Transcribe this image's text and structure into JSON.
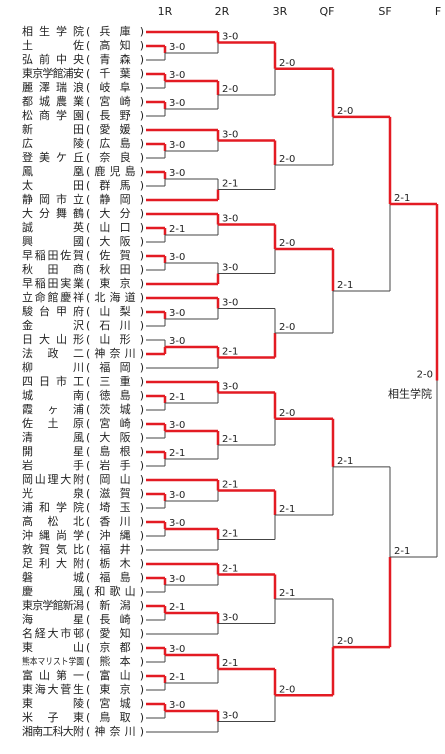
{
  "rounds": [
    "1R",
    "2R",
    "3R",
    "QF",
    "SF",
    "F"
  ],
  "champion": "相生学院",
  "bracket": {
    "score": "2-0",
    "winner": "top",
    "top": {
      "score": "2-1",
      "winner": "top",
      "top": {
        "score": "2-0",
        "winner": "top",
        "top": {
          "score": "2-0",
          "winner": "top",
          "top": {
            "score": "3-0",
            "winner": "top",
            "top": {
              "name": "相生学院",
              "pref": "(兵庫)"
            },
            "bottom": {
              "score": "3-0",
              "winner": "top",
              "top": {
                "name": "土佐",
                "pref": "(高知)"
              },
              "bottom": {
                "name": "弘前中央",
                "pref": "(青森)"
              }
            }
          },
          "bottom": {
            "score": "2-0",
            "winner": "top",
            "top": {
              "score": "3-0",
              "winner": "top",
              "top": {
                "name": "東京学館浦安",
                "pref": "(千葉)"
              },
              "bottom": {
                "name": "麗澤瑞浪",
                "pref": "(岐阜)"
              }
            },
            "bottom": {
              "score": "3-0",
              "winner": "top",
              "top": {
                "name": "都城農業",
                "pref": "(宮崎)"
              },
              "bottom": {
                "name": "松商学園",
                "pref": "(長野)"
              }
            }
          }
        },
        "bottom": {
          "score": "2-0",
          "winner": "top",
          "top": {
            "score": "3-0",
            "winner": "top",
            "top": {
              "name": "新田",
              "pref": "(愛媛)"
            },
            "bottom": {
              "score": "3-0",
              "winner": "top",
              "top": {
                "name": "広陵",
                "pref": "(広島)"
              },
              "bottom": {
                "name": "登美ケ丘",
                "pref": "(奈良)"
              }
            }
          },
          "bottom": {
            "score": "2-1",
            "winner": "bottom",
            "top": {
              "score": "3-0",
              "winner": "top",
              "top": {
                "name": "鳳凰",
                "pref": "(鹿児島)"
              },
              "bottom": {
                "name": "太田",
                "pref": "(群馬)"
              }
            },
            "bottom": {
              "name": "静岡市立",
              "pref": "(静岡)"
            }
          }
        }
      },
      "bottom": {
        "score": "2-1",
        "winner": "top",
        "top": {
          "score": "2-0",
          "winner": "top",
          "top": {
            "score": "3-0",
            "winner": "top",
            "top": {
              "name": "大分舞鶴",
              "pref": "(大分)"
            },
            "bottom": {
              "score": "2-1",
              "winner": "top",
              "top": {
                "name": "誠英",
                "pref": "(山口)"
              },
              "bottom": {
                "name": "興國",
                "pref": "(大阪)"
              }
            }
          },
          "bottom": {
            "score": "3-0",
            "winner": "bottom",
            "top": {
              "score": "3-0",
              "winner": "top",
              "top": {
                "name": "早稲田佐賀",
                "pref": "(佐賀)"
              },
              "bottom": {
                "name": "秋田商",
                "pref": "(秋田)"
              }
            },
            "bottom": {
              "name": "早稲田実業",
              "pref": "(東京)"
            }
          }
        },
        "bottom": {
          "score": "2-0",
          "winner": "bottom",
          "top": {
            "score": "3-0",
            "winner": "top",
            "top": {
              "name": "立命館慶祥",
              "pref": "(北海道)"
            },
            "bottom": {
              "score": "3-0",
              "winner": "top",
              "top": {
                "name": "駿台甲府",
                "pref": "(山梨)"
              },
              "bottom": {
                "name": "金沢",
                "pref": "(石川)"
              }
            }
          },
          "bottom": {
            "score": "2-1",
            "winner": "top",
            "top": {
              "score": "3-0",
              "winner": "bottom",
              "top": {
                "name": "日大山形",
                "pref": "(山形)"
              },
              "bottom": {
                "name": "法政二",
                "pref": "(神奈川)"
              }
            },
            "bottom": {
              "name": "柳川",
              "pref": "(福岡)"
            }
          }
        }
      }
    },
    "bottom": {
      "score": "2-1",
      "winner": "bottom",
      "top": {
        "score": "2-1",
        "winner": "top",
        "top": {
          "score": "2-0",
          "winner": "top",
          "top": {
            "score": "3-0",
            "winner": "top",
            "top": {
              "name": "四日市工",
              "pref": "(三重)"
            },
            "bottom": {
              "score": "2-1",
              "winner": "top",
              "top": {
                "name": "城南",
                "pref": "(徳島)"
              },
              "bottom": {
                "name": "霞ヶ浦",
                "pref": "(茨城)"
              }
            }
          },
          "bottom": {
            "score": "2-1",
            "winner": "top",
            "top": {
              "score": "3-0",
              "winner": "top",
              "top": {
                "name": "佐土原",
                "pref": "(宮崎)"
              },
              "bottom": {
                "name": "清風",
                "pref": "(大阪)"
              }
            },
            "bottom": {
              "score": "2-1",
              "winner": "top",
              "top": {
                "name": "開星",
                "pref": "(島根)"
              },
              "bottom": {
                "name": "岩手",
                "pref": "(岩手)"
              }
            }
          }
        },
        "bottom": {
          "score": "2-1",
          "winner": "top",
          "top": {
            "score": "2-1",
            "winner": "top",
            "top": {
              "name": "岡山理大附",
              "pref": "(岡山)"
            },
            "bottom": {
              "score": "3-0",
              "winner": "top",
              "top": {
                "name": "光泉",
                "pref": "(滋賀)"
              },
              "bottom": {
                "name": "浦和学院",
                "pref": "(埼玉)"
              }
            }
          },
          "bottom": {
            "score": "2-1",
            "winner": "top",
            "top": {
              "score": "3-0",
              "winner": "top",
              "top": {
                "name": "高松北",
                "pref": "(香川)"
              },
              "bottom": {
                "name": "沖縄尚学",
                "pref": "(沖縄)"
              }
            },
            "bottom": {
              "name": "敦賀気比",
              "pref": "(福井)"
            }
          }
        }
      },
      "bottom": {
        "score": "2-0",
        "winner": "bottom",
        "top": {
          "score": "2-1",
          "winner": "top",
          "top": {
            "score": "2-1",
            "winner": "top",
            "top": {
              "name": "足利大附",
              "pref": "(栃木)"
            },
            "bottom": {
              "score": "3-0",
              "winner": "top",
              "top": {
                "name": "磐城",
                "pref": "(福島)"
              },
              "bottom": {
                "name": "慶風",
                "pref": "(和歌山)"
              }
            }
          },
          "bottom": {
            "score": "3-0",
            "winner": "top",
            "top": {
              "score": "2-1",
              "winner": "top",
              "top": {
                "name": "東京学館新潟",
                "pref": "(新潟)"
              },
              "bottom": {
                "name": "海星",
                "pref": "(長崎)"
              }
            },
            "bottom": {
              "name": "名経大市邨",
              "pref": "(愛知)"
            }
          }
        },
        "bottom": {
          "score": "2-0",
          "winner": "top",
          "top": {
            "score": "2-1",
            "winner": "top",
            "top": {
              "score": "3-0",
              "winner": "top",
              "top": {
                "name": "東山",
                "pref": "(京都)"
              },
              "bottom": {
                "name": "熊本マリスト学園",
                "pref": "(熊本)"
              }
            },
            "bottom": {
              "score": "2-1",
              "winner": "top",
              "top": {
                "name": "富山第一",
                "pref": "(富山)"
              },
              "bottom": {
                "name": "東海大菅生",
                "pref": "(東京)"
              }
            }
          },
          "bottom": {
            "score": "3-0",
            "winner": "top",
            "top": {
              "score": "3-0",
              "winner": "top",
              "top": {
                "name": "東陵",
                "pref": "(宮城)"
              },
              "bottom": {
                "name": "米子東",
                "pref": "(鳥取)"
              }
            },
            "bottom": {
              "name": "湘南工科大附",
              "pref": "(神奈川)"
            }
          }
        }
      }
    }
  }
}
